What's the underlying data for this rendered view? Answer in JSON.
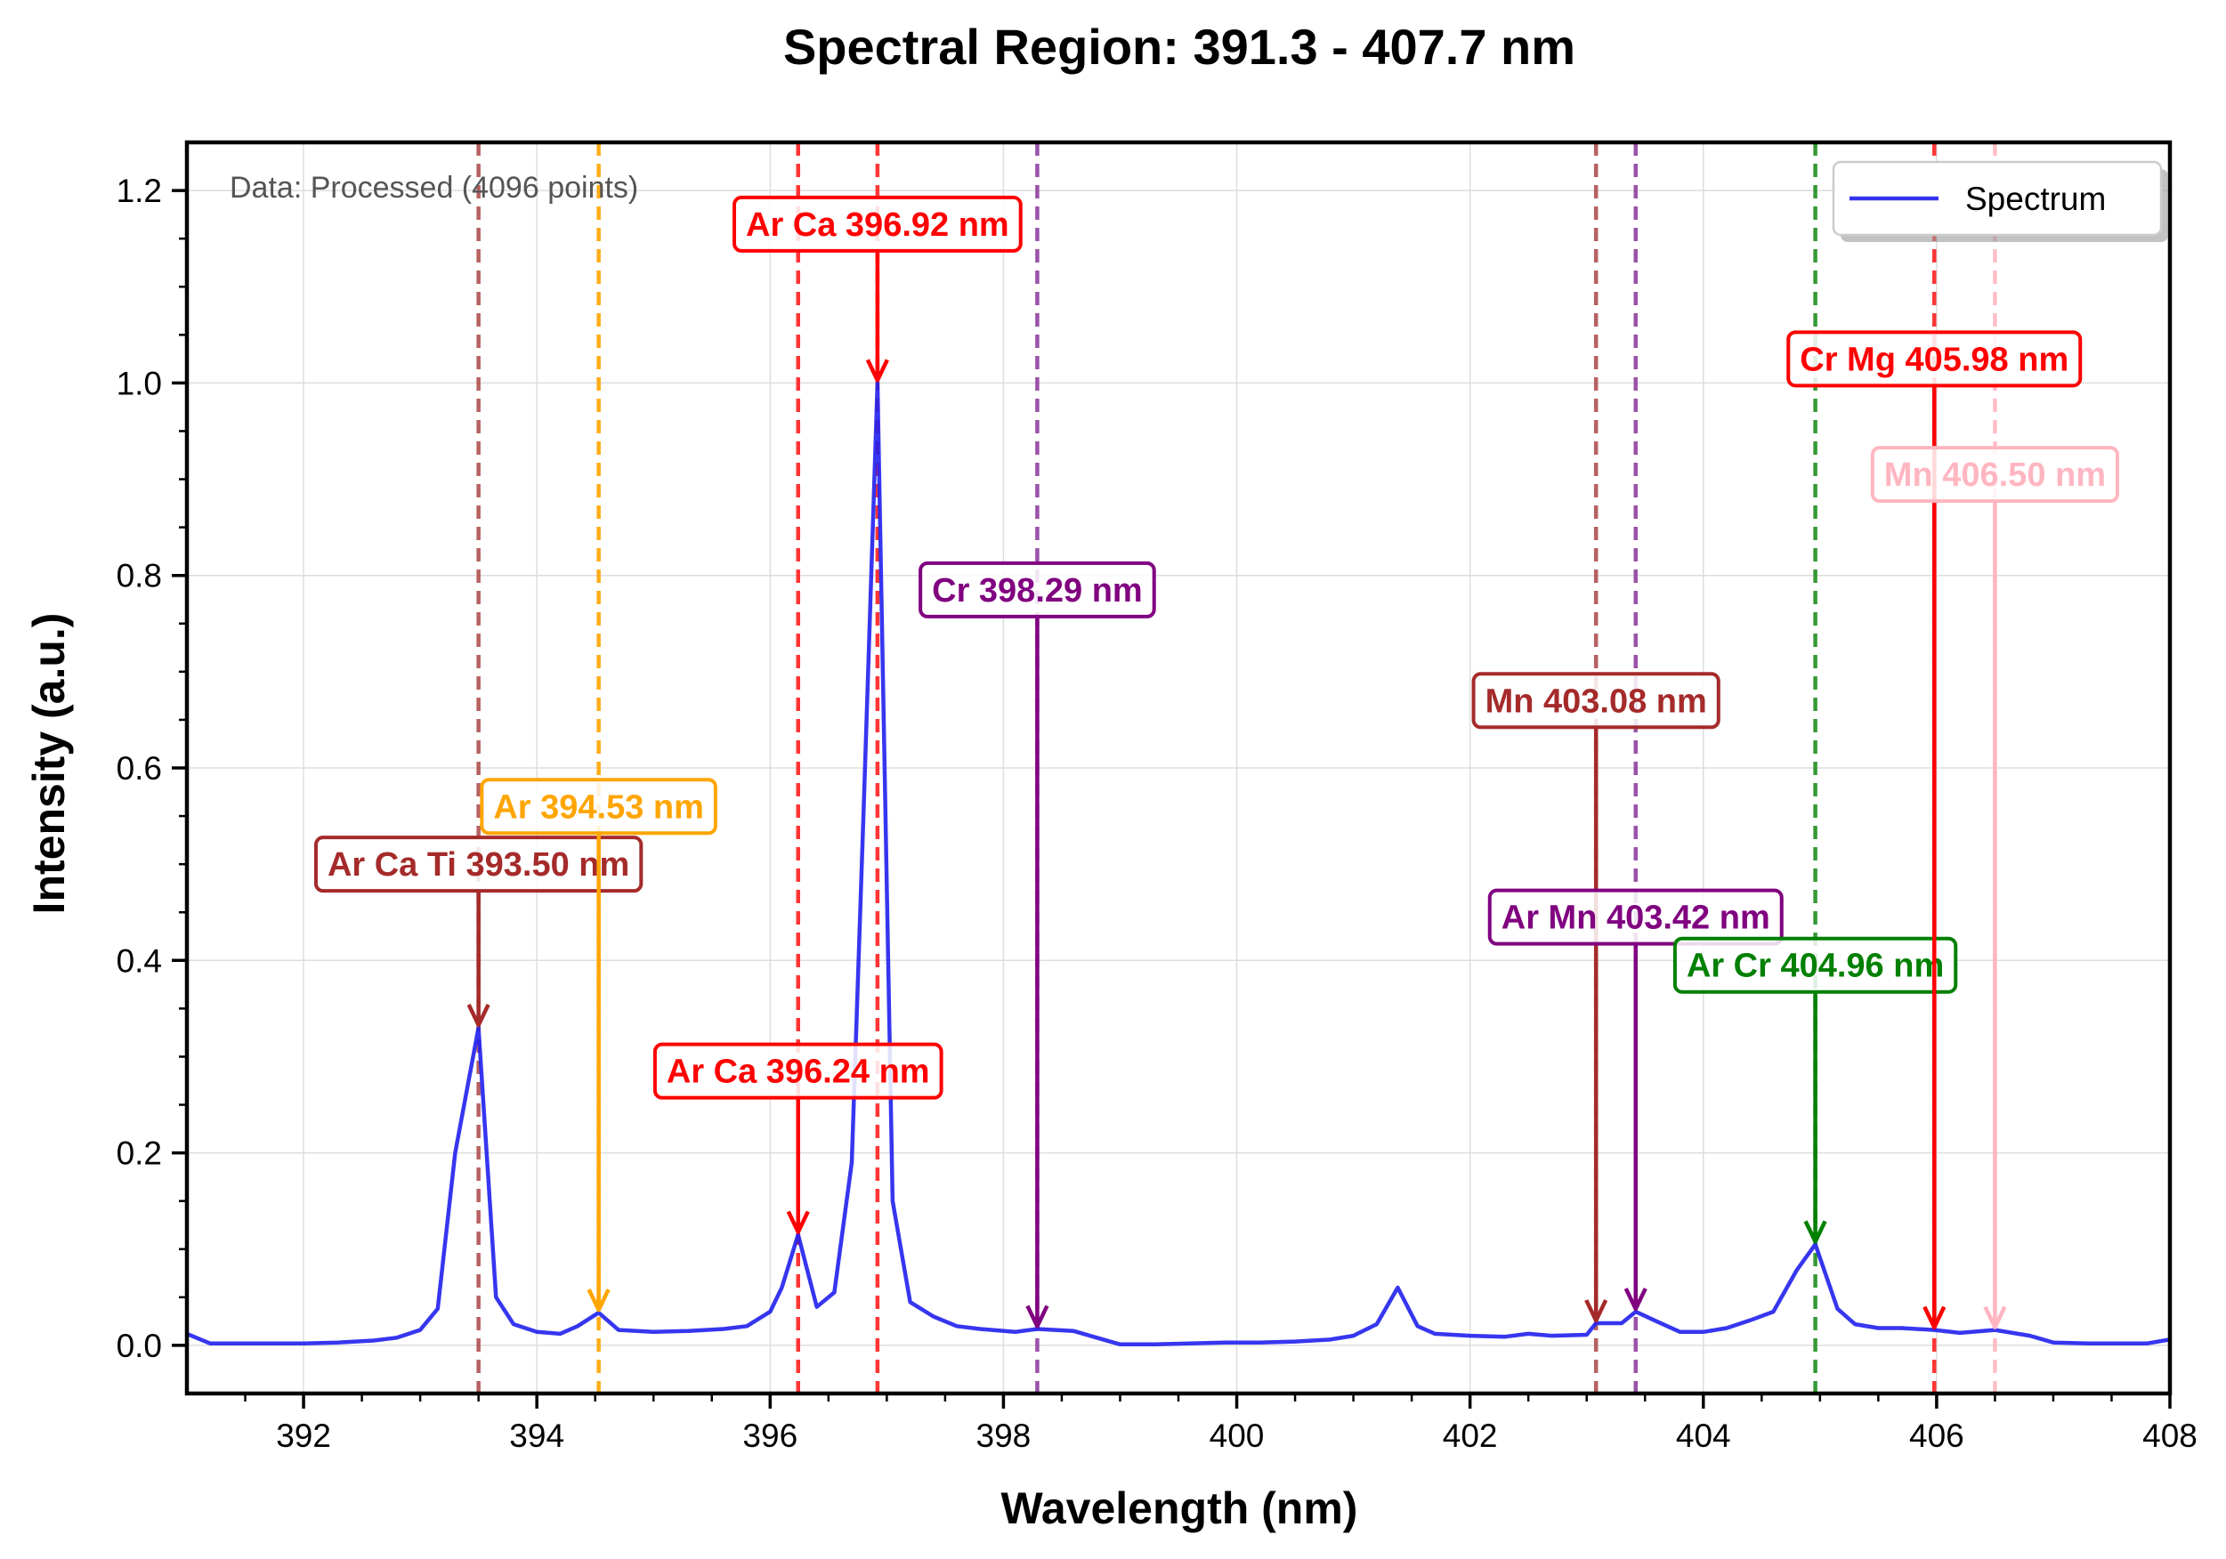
{
  "chart_data": {
    "type": "line",
    "title": "Spectral Region: 391.3 - 407.7 nm",
    "xlabel": "Wavelength (nm)",
    "ylabel": "Intensity (a.u.)",
    "xlim": [
      391.0,
      408.0
    ],
    "ylim": [
      -0.05,
      1.25
    ],
    "xticks": [
      "392",
      "394",
      "396",
      "398",
      "400",
      "402",
      "404",
      "406",
      "408"
    ],
    "yticks": [
      "0.0",
      "0.2",
      "0.4",
      "0.6",
      "0.8",
      "1.0",
      "1.2"
    ],
    "grid": true,
    "legend": {
      "position": "top-right",
      "entries": [
        "Spectrum"
      ]
    },
    "note": "Data: Processed (4096 points)",
    "series": [
      {
        "name": "Spectrum",
        "color": "#2020ee",
        "x": [
          391.0,
          391.2,
          391.5,
          391.8,
          392.0,
          392.3,
          392.6,
          392.8,
          393.0,
          393.15,
          393.3,
          393.5,
          393.65,
          393.8,
          394.0,
          394.2,
          394.35,
          394.53,
          394.7,
          395.0,
          395.3,
          395.6,
          395.8,
          396.0,
          396.1,
          396.24,
          396.4,
          396.55,
          396.7,
          396.8,
          396.92,
          397.05,
          397.2,
          397.4,
          397.6,
          397.8,
          398.1,
          398.29,
          398.6,
          398.8,
          399.0,
          399.3,
          399.6,
          399.9,
          400.2,
          400.5,
          400.8,
          401.0,
          401.2,
          401.38,
          401.55,
          401.7,
          402.0,
          402.3,
          402.5,
          402.7,
          403.0,
          403.08,
          403.3,
          403.42,
          403.6,
          403.8,
          404.0,
          404.2,
          404.4,
          404.6,
          404.8,
          404.96,
          405.15,
          405.3,
          405.5,
          405.7,
          405.98,
          406.2,
          406.5,
          406.8,
          407.0,
          407.3,
          407.6,
          407.8,
          408.0
        ],
        "y": [
          0.012,
          0.002,
          0.002,
          0.002,
          0.002,
          0.003,
          0.005,
          0.008,
          0.016,
          0.038,
          0.2,
          0.33,
          0.05,
          0.022,
          0.014,
          0.012,
          0.02,
          0.034,
          0.016,
          0.014,
          0.015,
          0.017,
          0.02,
          0.035,
          0.06,
          0.115,
          0.04,
          0.055,
          0.19,
          0.55,
          1.0,
          0.15,
          0.045,
          0.03,
          0.02,
          0.017,
          0.014,
          0.017,
          0.015,
          0.008,
          0.001,
          0.001,
          0.002,
          0.003,
          0.003,
          0.004,
          0.006,
          0.01,
          0.022,
          0.06,
          0.02,
          0.012,
          0.01,
          0.009,
          0.012,
          0.01,
          0.011,
          0.023,
          0.023,
          0.035,
          0.025,
          0.014,
          0.014,
          0.018,
          0.026,
          0.035,
          0.078,
          0.105,
          0.038,
          0.022,
          0.018,
          0.018,
          0.016,
          0.013,
          0.016,
          0.01,
          0.003,
          0.002,
          0.002,
          0.002,
          0.006
        ]
      }
    ],
    "vlines": [
      {
        "x": 393.5,
        "color": "#b05050"
      },
      {
        "x": 394.53,
        "color": "#ffa500"
      },
      {
        "x": 396.24,
        "color": "#ff2020"
      },
      {
        "x": 396.92,
        "color": "#ff2020"
      },
      {
        "x": 398.29,
        "color": "#9040a0"
      },
      {
        "x": 403.08,
        "color": "#b05050"
      },
      {
        "x": 403.42,
        "color": "#9040a0"
      },
      {
        "x": 404.96,
        "color": "#209020"
      },
      {
        "x": 405.98,
        "color": "#ff2020"
      },
      {
        "x": 406.5,
        "color": "#ffb6c1"
      }
    ],
    "annotations": [
      {
        "text": "Ar Ca Ti 393.50 nm",
        "x": 393.5,
        "y": 0.33,
        "text_x": 393.5,
        "text_y": 0.5,
        "color": "#a52a2a"
      },
      {
        "text": "Ar 394.53 nm",
        "x": 394.53,
        "y": 0.034,
        "text_x": 394.53,
        "text_y": 0.56,
        "color": "#ffa500"
      },
      {
        "text": "Ar Ca 396.24 nm",
        "x": 396.24,
        "y": 0.115,
        "text_x": 396.24,
        "text_y": 0.285,
        "color": "#ff0000"
      },
      {
        "text": "Ar Ca 396.92 nm",
        "x": 396.92,
        "y": 1.0,
        "text_x": 396.92,
        "text_y": 1.165,
        "color": "#ff0000"
      },
      {
        "text": "Cr 398.29 nm",
        "x": 398.29,
        "y": 0.017,
        "text_x": 398.29,
        "text_y": 0.785,
        "color": "#800080"
      },
      {
        "text": "Mn 403.08 nm",
        "x": 403.08,
        "y": 0.023,
        "text_x": 403.08,
        "text_y": 0.67,
        "color": "#a52a2a"
      },
      {
        "text": "Ar Mn 403.42 nm",
        "x": 403.42,
        "y": 0.035,
        "text_x": 403.42,
        "text_y": 0.445,
        "color": "#800080"
      },
      {
        "text": "Ar Cr 404.96 nm",
        "x": 404.96,
        "y": 0.105,
        "text_x": 404.96,
        "text_y": 0.395,
        "color": "#008000"
      },
      {
        "text": "Cr Mg 405.98 nm",
        "x": 405.98,
        "y": 0.016,
        "text_x": 405.98,
        "text_y": 1.025,
        "color": "#ff0000"
      },
      {
        "text": "Mn 406.50 nm",
        "x": 406.5,
        "y": 0.016,
        "text_x": 406.5,
        "text_y": 0.905,
        "color": "#ffb6c1"
      }
    ]
  }
}
